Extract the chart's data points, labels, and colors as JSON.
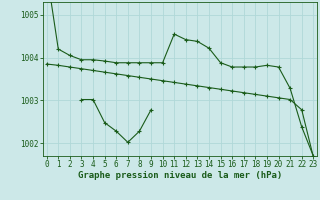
{
  "title": "Graphe pression niveau de la mer (hPa)",
  "background_color": "#cce8e8",
  "grid_color": "#b0d8d8",
  "line_color": "#1a5c1a",
  "hours": [
    0,
    1,
    2,
    3,
    4,
    5,
    6,
    7,
    8,
    9,
    10,
    11,
    12,
    13,
    14,
    15,
    16,
    17,
    18,
    19,
    20,
    21,
    22,
    23
  ],
  "series1": [
    1006.0,
    1004.2,
    1004.05,
    1003.95,
    1003.95,
    1003.92,
    1003.88,
    1003.88,
    1003.88,
    1003.88,
    1003.88,
    1004.55,
    1004.42,
    1004.38,
    1004.22,
    1003.88,
    1003.78,
    1003.78,
    1003.78,
    1003.82,
    1003.78,
    1003.28,
    1002.38,
    1001.7
  ],
  "series2": [
    null,
    null,
    null,
    1003.02,
    1003.02,
    1002.48,
    1002.28,
    1002.02,
    1002.28,
    1002.78,
    null,
    null,
    null,
    null,
    null,
    null,
    null,
    null,
    null,
    null,
    null,
    null,
    null,
    null
  ],
  "series3": [
    1003.85,
    1003.82,
    1003.78,
    1003.74,
    1003.7,
    1003.66,
    1003.62,
    1003.58,
    1003.54,
    1003.5,
    1003.46,
    1003.42,
    1003.38,
    1003.34,
    1003.3,
    1003.26,
    1003.22,
    1003.18,
    1003.14,
    1003.1,
    1003.06,
    1003.02,
    1002.78,
    1001.68
  ],
  "ylim": [
    1001.7,
    1005.3
  ],
  "yticks": [
    1002,
    1003,
    1004,
    1005
  ],
  "ytick_labels": [
    "1002",
    "1003",
    "1004",
    "1005"
  ],
  "title_fontsize": 6.5,
  "tick_fontsize": 5.5
}
